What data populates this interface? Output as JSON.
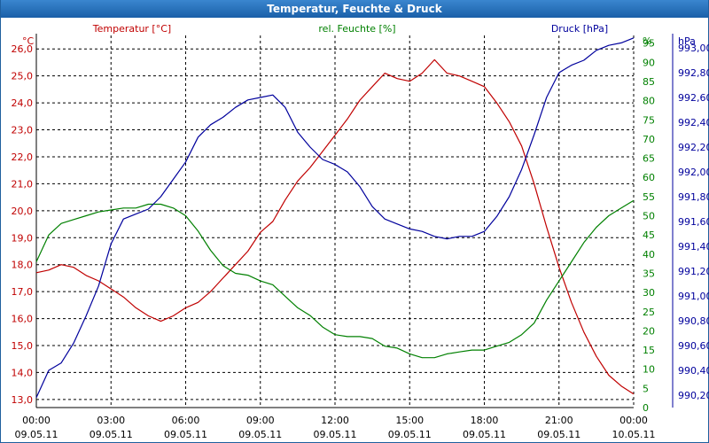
{
  "window": {
    "title": "Temperatur, Feuchte & Druck"
  },
  "colors": {
    "temperature": "#c00000",
    "humidity": "#008000",
    "pressure": "#00009c",
    "grid": "#000000",
    "titlebar": "#1f63a8"
  },
  "chart_data": {
    "type": "line",
    "title": "Temperatur, Feuchte & Druck",
    "x_ticks": [
      {
        "time": "00:00",
        "date": "09.05.11"
      },
      {
        "time": "03:00",
        "date": "09.05.11"
      },
      {
        "time": "06:00",
        "date": "09.05.11"
      },
      {
        "time": "09:00",
        "date": "09.05.11"
      },
      {
        "time": "12:00",
        "date": "09.05.11"
      },
      {
        "time": "15:00",
        "date": "09.05.11"
      },
      {
        "time": "18:00",
        "date": "09.05.11"
      },
      {
        "time": "21:00",
        "date": "09.05.11"
      },
      {
        "time": "00:00",
        "date": "10.05.11"
      }
    ],
    "xlim_hours": [
      0,
      24
    ],
    "axes": {
      "temperature": {
        "unit": "°C",
        "legend": "Temperatur [°C]",
        "side": "left",
        "ylim": [
          12.7,
          26.5
        ],
        "ticks": [
          "13,0",
          "14,0",
          "15,0",
          "16,0",
          "17,0",
          "18,0",
          "19,0",
          "20,0",
          "21,0",
          "22,0",
          "23,0",
          "24,0",
          "25,0",
          "26,0"
        ]
      },
      "humidity": {
        "unit": "%",
        "legend": "rel. Feuchte [%]",
        "side": "right-inner",
        "ylim": [
          0,
          97
        ],
        "ticks": [
          "0",
          "5",
          "10",
          "15",
          "20",
          "25",
          "30",
          "35",
          "40",
          "45",
          "50",
          "55",
          "60",
          "65",
          "70",
          "75",
          "80",
          "85",
          "90",
          "95"
        ]
      },
      "pressure": {
        "unit": "hPa",
        "legend": "Druck [hPa]",
        "side": "right-outer",
        "ylim": [
          990.1,
          993.1
        ],
        "ticks": [
          "990,20",
          "990,40",
          "990,60",
          "990,80",
          "991,00",
          "991,20",
          "991,40",
          "991,60",
          "991,80",
          "992,00",
          "992,20",
          "992,40",
          "992,60",
          "992,80",
          "993,00"
        ]
      }
    },
    "series": [
      {
        "name": "Temperatur [°C]",
        "axis": "temperature",
        "x": [
          0,
          0.5,
          1,
          1.5,
          2,
          2.5,
          3,
          3.5,
          4,
          4.5,
          5,
          5.5,
          6,
          6.5,
          7,
          7.5,
          8,
          8.5,
          9,
          9.5,
          10,
          10.5,
          11,
          11.5,
          12,
          12.5,
          13,
          13.5,
          14,
          14.5,
          15,
          15.5,
          16,
          16.5,
          17,
          17.5,
          18,
          18.5,
          19,
          19.5,
          20,
          20.5,
          21,
          21.5,
          22,
          22.5,
          23,
          23.5,
          24
        ],
        "values": [
          17.7,
          17.8,
          18.0,
          17.9,
          17.6,
          17.4,
          17.1,
          16.8,
          16.4,
          16.1,
          15.9,
          16.1,
          16.4,
          16.6,
          17.0,
          17.5,
          18.0,
          18.5,
          19.2,
          19.6,
          20.4,
          21.1,
          21.6,
          22.2,
          22.8,
          23.4,
          24.1,
          24.6,
          25.1,
          24.9,
          24.8,
          25.1,
          25.6,
          25.1,
          25.0,
          24.8,
          24.6,
          24.0,
          23.3,
          22.4,
          21.0,
          19.4,
          17.9,
          16.6,
          15.5,
          14.6,
          13.9,
          13.5,
          13.2
        ]
      },
      {
        "name": "rel. Feuchte [%]",
        "axis": "humidity",
        "x": [
          0,
          0.5,
          1,
          1.5,
          2,
          2.5,
          3,
          3.5,
          4,
          4.5,
          5,
          5.5,
          6,
          6.5,
          7,
          7.5,
          8,
          8.5,
          9,
          9.5,
          10,
          10.5,
          11,
          11.5,
          12,
          12.5,
          13,
          13.5,
          14,
          14.5,
          15,
          15.5,
          16,
          16.5,
          17,
          17.5,
          18,
          18.5,
          19,
          19.5,
          20,
          20.5,
          21,
          21.5,
          22,
          22.5,
          23,
          23.5,
          24
        ],
        "values": [
          38,
          45,
          48,
          49,
          50,
          51,
          51.5,
          52,
          52,
          53,
          53,
          52,
          50,
          46,
          41,
          37,
          35,
          34.5,
          33,
          32,
          29,
          26,
          24,
          21,
          19,
          18.5,
          18.5,
          18,
          16,
          15.5,
          14,
          13,
          13,
          14,
          14.5,
          15,
          15,
          16,
          17,
          19,
          22,
          28,
          33,
          38,
          43,
          47,
          50,
          52,
          54
        ]
      },
      {
        "name": "Druck [hPa]",
        "axis": "pressure",
        "x": [
          0,
          0.5,
          1,
          1.5,
          2,
          2.5,
          3,
          3.5,
          4,
          4.5,
          5,
          5.5,
          6,
          6.5,
          7,
          7.5,
          8,
          8.5,
          9,
          9.5,
          10,
          10.5,
          11,
          11.5,
          12,
          12.5,
          13,
          13.5,
          14,
          14.5,
          15,
          15.5,
          16,
          16.5,
          17,
          17.5,
          18,
          18.5,
          19,
          19.5,
          20,
          20.5,
          21,
          21.5,
          22,
          22.5,
          23,
          23.5,
          24
        ],
        "values": [
          990.18,
          990.4,
          990.46,
          990.62,
          990.84,
          991.08,
          991.42,
          991.62,
          991.66,
          991.7,
          991.8,
          991.94,
          992.08,
          992.28,
          992.38,
          992.44,
          992.52,
          992.58,
          992.6,
          992.62,
          992.52,
          992.32,
          992.2,
          992.1,
          992.06,
          992.0,
          991.88,
          991.72,
          991.62,
          991.58,
          991.54,
          991.52,
          991.48,
          991.46,
          991.48,
          991.48,
          991.52,
          991.64,
          991.8,
          992.02,
          992.3,
          992.6,
          992.8,
          992.86,
          992.9,
          992.98,
          993.02,
          993.04,
          993.08
        ]
      }
    ]
  }
}
